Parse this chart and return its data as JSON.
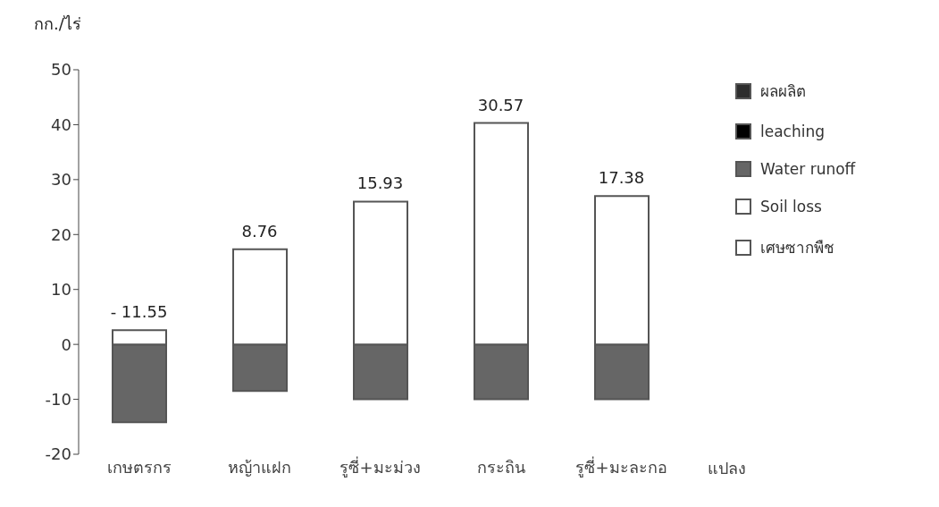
{
  "chart_data": {
    "type": "bar",
    "ylabel": "กก./ไร่",
    "xlabel": "แปลง",
    "categories": [
      "เกษตรกร",
      "หญ้าแฝก",
      "รูซี่+มะม่วง",
      "กระถิน",
      "รูซี่+มะละกอ"
    ],
    "stacked": true,
    "series": [
      {
        "name": "ผลผลิต",
        "color": "#2e2e2e",
        "values": [
          null,
          null,
          null,
          null,
          null
        ]
      },
      {
        "name": "leaching",
        "color": "#000000",
        "values": [
          null,
          null,
          null,
          null,
          null
        ]
      },
      {
        "name": "Water runoff",
        "color": "#666666",
        "values": [
          -14.2,
          -8.5,
          -10,
          -10,
          -10
        ]
      },
      {
        "name": "Soil loss",
        "color": "#ffffff",
        "values": [
          null,
          null,
          null,
          null,
          null
        ]
      },
      {
        "name": "เศษซากพืช",
        "color": "#ffffff",
        "values": [
          2.6,
          17.3,
          26,
          40.3,
          27
        ]
      }
    ],
    "annotations": [
      {
        "text": "- 11.55",
        "x": "เกษตรกร",
        "y": 2.6
      },
      {
        "text": "8.76",
        "x": "หญ้าแฝก",
        "y": 17.3
      },
      {
        "text": "15.93",
        "x": "รูซี่+มะม่วง",
        "y": 26
      },
      {
        "text": "30.57",
        "x": "กระถิน",
        "y": 40.3
      },
      {
        "text": "17.38",
        "x": "รูซี่+มะละกอ",
        "y": 27
      }
    ],
    "ylim": [
      -20,
      50
    ],
    "yticks": [
      -20,
      -10,
      0,
      10,
      20,
      30,
      40,
      50
    ],
    "grid": false,
    "legend": "right"
  }
}
